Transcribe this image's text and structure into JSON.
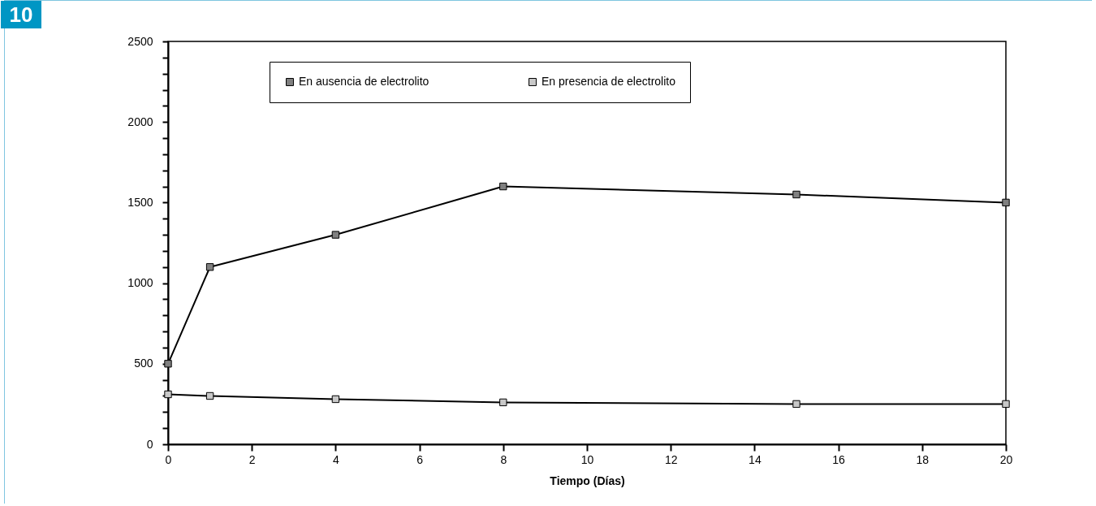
{
  "chart_data": {
    "type": "line",
    "xlabel": "Tiempo (Días)",
    "annotations": [
      "10"
    ],
    "xlim": [
      0,
      20
    ],
    "xticks": [
      0,
      2,
      4,
      6,
      8,
      10,
      12,
      14,
      16,
      18,
      20
    ],
    "ylim": [
      0,
      2500
    ],
    "yticks": [
      0,
      {
        "value": 100,
        "label": null
      },
      {
        "value": 200,
        "label": null
      },
      {
        "value": 300,
        "label": null
      },
      {
        "value": 400,
        "label": null
      },
      500,
      {
        "value": 600,
        "label": null
      },
      {
        "value": 700,
        "label": null
      },
      {
        "value": 800,
        "label": null
      },
      {
        "value": 900,
        "label": null
      },
      1000,
      {
        "value": 1100,
        "label": null
      },
      {
        "value": 1200,
        "label": null
      },
      {
        "value": 1300,
        "label": null
      },
      {
        "value": 1400,
        "label": null
      },
      1500,
      {
        "value": 1600,
        "label": null
      },
      {
        "value": 1700,
        "label": null
      },
      {
        "value": 1800,
        "label": null
      },
      {
        "value": 1900,
        "label": null
      },
      2000,
      {
        "value": 2100,
        "label": null
      },
      {
        "value": 2200,
        "label": null
      },
      {
        "value": 2300,
        "label": null
      },
      {
        "value": 2400,
        "label": null
      },
      2500
    ],
    "x": [
      0,
      1,
      4,
      8,
      15,
      20
    ],
    "series": [
      {
        "name": "En ausencia de electrolito",
        "color": "#808080",
        "values": [
          500,
          1100,
          1300,
          1600,
          1550,
          1500
        ]
      },
      {
        "name": "En presencia de electrolito",
        "color": "#c8c8c8",
        "values": [
          310,
          300,
          280,
          260,
          250,
          250
        ]
      }
    ],
    "grid": false,
    "legend": "top",
    "marker": "square",
    "line_style": "solid"
  }
}
